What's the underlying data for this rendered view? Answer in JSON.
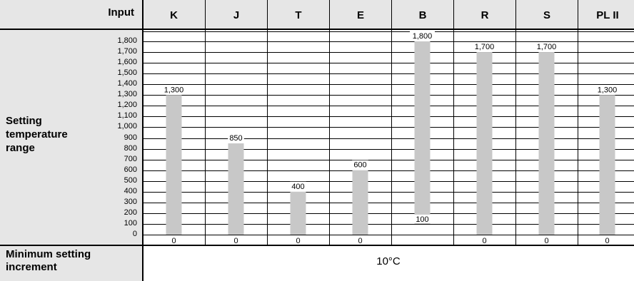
{
  "header": {
    "input_label": "Input",
    "setting_label": "Setting temperature range",
    "min_increment_label": "Minimum setting increment",
    "min_increment_value": "10°C"
  },
  "colors": {
    "bar": "#c8c8c8",
    "header_bg": "#e6e6e6",
    "grid": "#000000"
  },
  "chart_data": {
    "type": "bar",
    "categories": [
      "K",
      "J",
      "T",
      "E",
      "B",
      "R",
      "S",
      "PL II"
    ],
    "series": [
      {
        "values": [
          1300,
          850,
          400,
          600,
          1800,
          1700,
          1700,
          1300
        ]
      }
    ],
    "lower_bounds": [
      0,
      0,
      0,
      0,
      100,
      0,
      0,
      0
    ],
    "top_labels": [
      "1,300",
      "850",
      "400",
      "600",
      "1,800",
      "1,700",
      "1,700",
      "1,300"
    ],
    "bottom_labels": [
      "0",
      "0",
      "0",
      "0",
      "100",
      "0",
      "0",
      "0"
    ],
    "yticks": [
      "0",
      "100",
      "200",
      "300",
      "400",
      "500",
      "600",
      "700",
      "800",
      "900",
      "1,000",
      "1,100",
      "1,200",
      "1,300",
      "1,400",
      "1,500",
      "1,600",
      "1,700",
      "1,800"
    ],
    "ylim": [
      0,
      1800
    ],
    "grid": true
  }
}
